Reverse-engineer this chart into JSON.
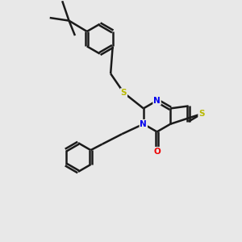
{
  "background_color": "#e8e8e8",
  "bond_color": "#1a1a1a",
  "S_color": "#b8b800",
  "N_color": "#0000ee",
  "O_color": "#ee0000",
  "line_width": 1.8,
  "figsize": [
    3.0,
    3.0
  ],
  "dpi": 100,
  "xlim": [
    0,
    10
  ],
  "ylim": [
    0,
    10
  ]
}
